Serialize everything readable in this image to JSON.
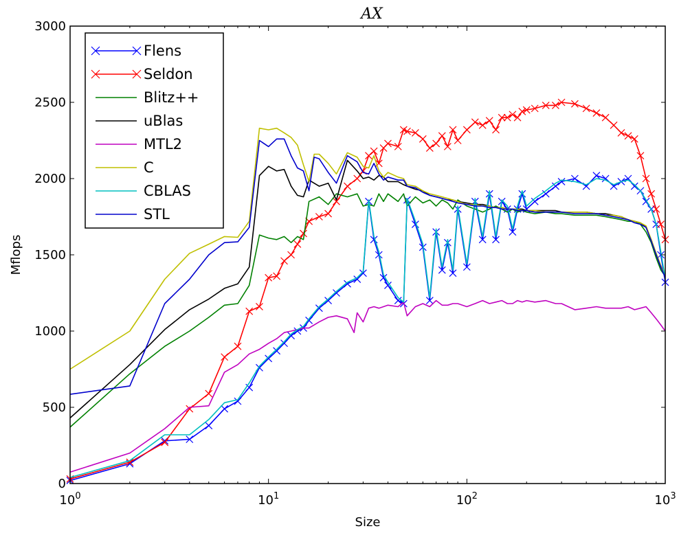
{
  "chart_data": {
    "type": "line",
    "title": "AX",
    "xlabel": "Size",
    "ylabel": "Mflops",
    "xscale": "log",
    "xlim": [
      1,
      1000
    ],
    "ylim": [
      0,
      3000
    ],
    "x_ticks": [
      {
        "value": 1,
        "base": "10",
        "exp": "0"
      },
      {
        "value": 10,
        "base": "10",
        "exp": "1"
      },
      {
        "value": 100,
        "base": "10",
        "exp": "2"
      },
      {
        "value": 1000,
        "base": "10",
        "exp": "3"
      }
    ],
    "y_ticks": [
      0,
      500,
      1000,
      1500,
      2000,
      2500,
      3000
    ],
    "y_tick_labels": [
      "0",
      "500",
      "1000",
      "1500",
      "2000",
      "2500",
      "3000"
    ],
    "grid": false,
    "legend_position": "upper-left",
    "series": [
      {
        "name": "Flens",
        "color": "#0000ff",
        "marker": "x",
        "x": [
          1,
          2,
          3,
          4,
          5,
          6,
          7,
          8,
          9,
          10,
          11,
          12,
          13,
          14,
          15,
          16,
          18,
          20,
          22,
          25,
          28,
          30,
          32,
          34,
          36,
          38,
          40,
          45,
          48,
          50,
          55,
          60,
          65,
          70,
          75,
          80,
          85,
          90,
          100,
          110,
          120,
          130,
          140,
          150,
          160,
          170,
          180,
          190,
          200,
          220,
          250,
          280,
          300,
          350,
          400,
          450,
          500,
          550,
          600,
          650,
          700,
          750,
          800,
          850,
          900,
          950,
          1000
        ],
        "y": [
          20,
          130,
          280,
          290,
          380,
          490,
          540,
          630,
          760,
          820,
          870,
          920,
          970,
          1000,
          1020,
          1070,
          1150,
          1200,
          1250,
          1310,
          1340,
          1380,
          1850,
          1600,
          1500,
          1350,
          1300,
          1200,
          1180,
          1860,
          1700,
          1550,
          1200,
          1650,
          1400,
          1580,
          1380,
          1800,
          1420,
          1850,
          1600,
          1900,
          1600,
          1850,
          1800,
          1650,
          1800,
          1900,
          1800,
          1850,
          1900,
          1950,
          1980,
          2000,
          1950,
          2020,
          2000,
          1950,
          1980,
          2000,
          1950,
          1920,
          1850,
          1800,
          1700,
          1500,
          1320
        ]
      },
      {
        "name": "Seldon",
        "color": "#ff0000",
        "marker": "x",
        "x": [
          1,
          2,
          3,
          4,
          5,
          6,
          7,
          8,
          9,
          10,
          11,
          12,
          13,
          14,
          15,
          16,
          18,
          20,
          22,
          25,
          28,
          30,
          32,
          34,
          36,
          38,
          40,
          45,
          48,
          50,
          55,
          60,
          65,
          70,
          75,
          80,
          85,
          90,
          100,
          110,
          120,
          130,
          140,
          150,
          160,
          170,
          180,
          190,
          200,
          220,
          250,
          280,
          300,
          350,
          400,
          450,
          500,
          550,
          600,
          650,
          700,
          750,
          800,
          850,
          900,
          950,
          1000
        ],
        "y": [
          30,
          140,
          270,
          490,
          590,
          830,
          900,
          1130,
          1160,
          1350,
          1360,
          1460,
          1500,
          1570,
          1640,
          1720,
          1750,
          1770,
          1850,
          1950,
          2000,
          2050,
          2150,
          2180,
          2100,
          2200,
          2230,
          2210,
          2320,
          2310,
          2300,
          2260,
          2200,
          2230,
          2280,
          2210,
          2320,
          2250,
          2320,
          2370,
          2350,
          2380,
          2320,
          2400,
          2400,
          2420,
          2400,
          2440,
          2450,
          2460,
          2480,
          2480,
          2500,
          2490,
          2460,
          2430,
          2400,
          2350,
          2300,
          2280,
          2260,
          2150,
          2000,
          1900,
          1800,
          1700,
          1600
        ]
      },
      {
        "name": "Blitz++",
        "color": "#008000",
        "marker": "none",
        "x": [
          1,
          2,
          3,
          4,
          5,
          6,
          7,
          8,
          9,
          10,
          11,
          12,
          13,
          14,
          15,
          16,
          18,
          20,
          22,
          25,
          28,
          30,
          32,
          34,
          36,
          38,
          40,
          45,
          48,
          50,
          55,
          60,
          65,
          70,
          75,
          80,
          85,
          90,
          100,
          110,
          120,
          130,
          140,
          150,
          160,
          170,
          180,
          190,
          200,
          220,
          250,
          280,
          300,
          350,
          400,
          450,
          500,
          550,
          600,
          650,
          700,
          750,
          800,
          850,
          900,
          950,
          1000
        ],
        "y": [
          370,
          720,
          900,
          1000,
          1090,
          1170,
          1180,
          1300,
          1630,
          1610,
          1600,
          1620,
          1580,
          1620,
          1600,
          1850,
          1880,
          1830,
          1900,
          1880,
          1900,
          1820,
          1830,
          1820,
          1900,
          1850,
          1900,
          1850,
          1900,
          1820,
          1880,
          1840,
          1860,
          1820,
          1860,
          1840,
          1800,
          1860,
          1820,
          1800,
          1780,
          1800,
          1820,
          1800,
          1780,
          1800,
          1780,
          1790,
          1780,
          1770,
          1780,
          1770,
          1770,
          1760,
          1760,
          1760,
          1750,
          1740,
          1730,
          1720,
          1720,
          1700,
          1650,
          1580,
          1480,
          1400,
          1360
        ]
      },
      {
        "name": "uBlas",
        "color": "#000000",
        "marker": "none",
        "x": [
          1,
          2,
          3,
          4,
          5,
          6,
          7,
          8,
          9,
          10,
          11,
          12,
          13,
          14,
          15,
          16,
          18,
          20,
          22,
          25,
          28,
          30,
          32,
          34,
          36,
          38,
          40,
          45,
          48,
          50,
          55,
          60,
          65,
          70,
          75,
          80,
          85,
          90,
          100,
          110,
          120,
          130,
          140,
          150,
          160,
          170,
          180,
          190,
          200,
          220,
          250,
          280,
          300,
          350,
          400,
          450,
          500,
          550,
          600,
          650,
          700,
          750,
          800,
          850,
          900,
          950,
          1000
        ],
        "y": [
          430,
          780,
          1010,
          1140,
          1210,
          1280,
          1310,
          1420,
          2020,
          2080,
          2050,
          2060,
          1950,
          1890,
          1880,
          1990,
          1950,
          1970,
          1860,
          2120,
          2050,
          2000,
          2010,
          1990,
          2020,
          2010,
          1980,
          1980,
          1960,
          1950,
          1930,
          1920,
          1890,
          1880,
          1870,
          1860,
          1860,
          1850,
          1840,
          1830,
          1830,
          1820,
          1810,
          1810,
          1800,
          1800,
          1800,
          1800,
          1790,
          1790,
          1790,
          1790,
          1780,
          1780,
          1780,
          1770,
          1770,
          1760,
          1750,
          1730,
          1720,
          1710,
          1680,
          1600,
          1500,
          1420,
          1370
        ]
      },
      {
        "name": "MTL2",
        "color": "#bf00bf",
        "marker": "none",
        "x": [
          1,
          2,
          3,
          4,
          5,
          6,
          7,
          8,
          9,
          10,
          11,
          12,
          13,
          14,
          15,
          16,
          18,
          20,
          22,
          25,
          27,
          28,
          30,
          32,
          34,
          36,
          38,
          40,
          45,
          48,
          50,
          55,
          60,
          65,
          70,
          75,
          80,
          85,
          90,
          100,
          110,
          120,
          130,
          140,
          150,
          160,
          170,
          180,
          190,
          200,
          220,
          250,
          280,
          300,
          350,
          400,
          450,
          500,
          550,
          600,
          650,
          700,
          750,
          800,
          850,
          900,
          950,
          1000
        ],
        "y": [
          75,
          200,
          360,
          500,
          510,
          730,
          780,
          850,
          880,
          920,
          950,
          990,
          1000,
          1010,
          1020,
          1020,
          1060,
          1090,
          1100,
          1080,
          990,
          1120,
          1060,
          1150,
          1160,
          1150,
          1160,
          1170,
          1160,
          1190,
          1100,
          1160,
          1180,
          1160,
          1200,
          1170,
          1170,
          1180,
          1180,
          1160,
          1180,
          1200,
          1180,
          1190,
          1200,
          1180,
          1180,
          1200,
          1190,
          1200,
          1190,
          1200,
          1180,
          1180,
          1140,
          1150,
          1160,
          1150,
          1150,
          1150,
          1160,
          1140,
          1150,
          1160,
          1120,
          1080,
          1040,
          1000
        ]
      },
      {
        "name": "C",
        "color": "#bfbf00",
        "marker": "none",
        "x": [
          1,
          2,
          3,
          4,
          5,
          6,
          7,
          8,
          9,
          10,
          11,
          12,
          13,
          14,
          15,
          16,
          17,
          18,
          20,
          22,
          25,
          28,
          30,
          32,
          34,
          36,
          38,
          40,
          45,
          48,
          50,
          55,
          60,
          65,
          70,
          75,
          80,
          85,
          90,
          100,
          110,
          120,
          130,
          140,
          150,
          160,
          170,
          180,
          190,
          200,
          220,
          250,
          280,
          300,
          350,
          400,
          450,
          500,
          550,
          600,
          650,
          700,
          750,
          800,
          850,
          900,
          950,
          1000
        ],
        "y": [
          750,
          1000,
          1340,
          1510,
          1570,
          1620,
          1615,
          1720,
          2330,
          2320,
          2330,
          2300,
          2270,
          2220,
          2090,
          1980,
          2160,
          2160,
          2100,
          2030,
          2170,
          2140,
          2080,
          2070,
          2150,
          2050,
          2010,
          2040,
          2010,
          2000,
          1960,
          1950,
          1920,
          1900,
          1890,
          1880,
          1870,
          1860,
          1850,
          1830,
          1830,
          1820,
          1820,
          1810,
          1810,
          1800,
          1800,
          1800,
          1790,
          1790,
          1790,
          1780,
          1780,
          1780,
          1780,
          1780,
          1770,
          1760,
          1760,
          1750,
          1730,
          1720,
          1710,
          1690,
          1600,
          1510,
          1430,
          1360
        ]
      },
      {
        "name": "CBLAS",
        "color": "#00bfbf",
        "marker": "none",
        "x": [
          1,
          2,
          3,
          4,
          5,
          6,
          7,
          8,
          9,
          10,
          11,
          12,
          13,
          14,
          15,
          16,
          18,
          20,
          22,
          25,
          28,
          30,
          32,
          34,
          36,
          38,
          40,
          45,
          48,
          50,
          55,
          60,
          65,
          70,
          75,
          80,
          85,
          90,
          100,
          110,
          120,
          130,
          140,
          150,
          160,
          170,
          180,
          190,
          200,
          220,
          250,
          280,
          300,
          350,
          400,
          450,
          500,
          550,
          600,
          650,
          700,
          750,
          800,
          850,
          900,
          950,
          1000
        ],
        "y": [
          40,
          150,
          320,
          320,
          420,
          530,
          550,
          660,
          770,
          830,
          880,
          930,
          980,
          1010,
          1030,
          1080,
          1160,
          1210,
          1260,
          1320,
          1350,
          1390,
          1860,
          1620,
          1520,
          1370,
          1320,
          1220,
          1190,
          1870,
          1720,
          1570,
          1220,
          1670,
          1420,
          1600,
          1400,
          1820,
          1440,
          1870,
          1620,
          1920,
          1620,
          1860,
          1820,
          1670,
          1820,
          1920,
          1820,
          1870,
          1920,
          1970,
          1990,
          1980,
          1960,
          2000,
          1990,
          1960,
          1980,
          1990,
          1960,
          1920,
          1860,
          1800,
          1700,
          1520,
          1340
        ]
      },
      {
        "name": "STL",
        "color": "#0000cc",
        "marker": "none",
        "x": [
          1,
          2,
          3,
          4,
          5,
          6,
          7,
          8,
          9,
          10,
          11,
          12,
          13,
          14,
          15,
          16,
          17,
          18,
          20,
          22,
          25,
          28,
          30,
          32,
          34,
          36,
          38,
          40,
          45,
          48,
          50,
          55,
          60,
          65,
          70,
          75,
          80,
          85,
          90,
          100,
          110,
          120,
          130,
          140,
          150,
          160,
          170,
          180,
          190,
          200,
          220,
          250,
          280,
          300,
          350,
          400,
          450,
          500,
          550,
          600,
          650,
          700,
          750,
          800,
          850,
          900,
          950,
          1000
        ],
        "y": [
          585,
          640,
          1180,
          1340,
          1500,
          1580,
          1585,
          1680,
          2250,
          2210,
          2260,
          2260,
          2150,
          2070,
          2050,
          1920,
          2140,
          2130,
          2040,
          1970,
          2150,
          2110,
          2040,
          2030,
          2100,
          2030,
          1990,
          2010,
          1990,
          1990,
          1950,
          1940,
          1910,
          1890,
          1880,
          1870,
          1860,
          1850,
          1840,
          1830,
          1820,
          1820,
          1810,
          1810,
          1800,
          1800,
          1800,
          1790,
          1790,
          1790,
          1780,
          1780,
          1780,
          1780,
          1770,
          1770,
          1770,
          1760,
          1750,
          1740,
          1730,
          1710,
          1700,
          1680,
          1590,
          1500,
          1420,
          1350
        ]
      }
    ]
  }
}
